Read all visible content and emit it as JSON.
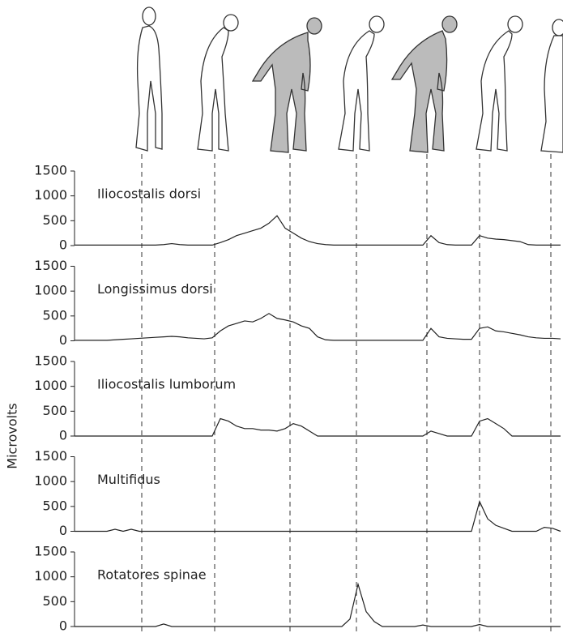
{
  "chart_data": [
    {
      "type": "line",
      "title": "Iliocostalis dorsi",
      "color": "#222",
      "ylim": [
        0,
        1500
      ],
      "yticks": [
        0,
        500,
        1000,
        1500
      ],
      "values": [
        10,
        10,
        10,
        10,
        10,
        10,
        10,
        10,
        10,
        10,
        10,
        20,
        40,
        20,
        10,
        10,
        10,
        10,
        60,
        120,
        200,
        250,
        300,
        350,
        450,
        600,
        350,
        250,
        150,
        80,
        40,
        20,
        10,
        10,
        10,
        10,
        10,
        10,
        10,
        10,
        10,
        10,
        10,
        10,
        200,
        60,
        20,
        10,
        10,
        10,
        200,
        150,
        130,
        120,
        100,
        80,
        20,
        10,
        10,
        10,
        10
      ]
    },
    {
      "type": "line",
      "title": "Longissimus dorsi",
      "color": "#222",
      "ylim": [
        0,
        1500
      ],
      "yticks": [
        0,
        500,
        1000,
        1500
      ],
      "values": [
        10,
        10,
        10,
        10,
        10,
        20,
        30,
        40,
        50,
        60,
        70,
        80,
        90,
        80,
        60,
        50,
        40,
        60,
        200,
        300,
        350,
        400,
        380,
        450,
        550,
        450,
        420,
        380,
        300,
        250,
        80,
        20,
        10,
        10,
        10,
        10,
        10,
        10,
        10,
        10,
        10,
        10,
        10,
        10,
        250,
        80,
        50,
        40,
        30,
        30,
        250,
        280,
        200,
        180,
        150,
        120,
        80,
        60,
        50,
        50,
        40
      ]
    },
    {
      "type": "line",
      "title": "Iliocostalis lumborum",
      "ylabel": "Microvolts",
      "color": "#222",
      "ylim": [
        0,
        1500
      ],
      "yticks": [
        0,
        500,
        1000,
        1500
      ],
      "values": [
        0,
        0,
        0,
        0,
        0,
        0,
        0,
        0,
        0,
        0,
        0,
        0,
        0,
        0,
        0,
        0,
        0,
        0,
        350,
        300,
        200,
        150,
        150,
        120,
        120,
        100,
        150,
        250,
        200,
        100,
        0,
        0,
        0,
        0,
        0,
        0,
        0,
        0,
        0,
        0,
        0,
        0,
        0,
        0,
        100,
        50,
        0,
        0,
        0,
        0,
        300,
        350,
        250,
        150,
        0,
        0,
        0,
        0,
        0,
        0,
        0
      ]
    },
    {
      "type": "line",
      "title": "Multifidus",
      "color": "#222",
      "ylim": [
        0,
        1500
      ],
      "yticks": [
        0,
        500,
        1000,
        1500
      ],
      "values": [
        0,
        0,
        0,
        0,
        0,
        40,
        0,
        40,
        0,
        0,
        0,
        0,
        0,
        0,
        0,
        0,
        0,
        0,
        0,
        0,
        0,
        0,
        0,
        0,
        0,
        0,
        0,
        0,
        0,
        0,
        0,
        0,
        0,
        0,
        0,
        0,
        0,
        0,
        0,
        0,
        0,
        0,
        0,
        0,
        0,
        0,
        0,
        0,
        0,
        0,
        600,
        250,
        120,
        60,
        0,
        0,
        0,
        0,
        80,
        60,
        0
      ]
    },
    {
      "type": "line",
      "title": "Rotatores spinae",
      "color": "#222",
      "ylim": [
        0,
        1500
      ],
      "yticks": [
        0,
        500,
        1000,
        1500
      ],
      "values": [
        0,
        0,
        0,
        0,
        0,
        0,
        0,
        0,
        0,
        0,
        0,
        50,
        0,
        0,
        0,
        0,
        0,
        0,
        0,
        0,
        0,
        0,
        0,
        0,
        0,
        0,
        0,
        0,
        0,
        0,
        0,
        0,
        0,
        0,
        150,
        850,
        300,
        100,
        0,
        0,
        0,
        0,
        0,
        30,
        0,
        0,
        0,
        0,
        0,
        0,
        40,
        0,
        0,
        0,
        0,
        0,
        0,
        0,
        0,
        0,
        0
      ]
    }
  ]
}
